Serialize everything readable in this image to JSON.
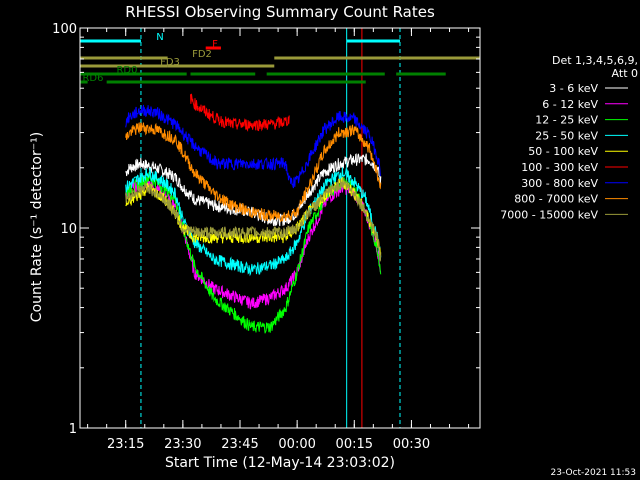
{
  "chart_data": {
    "type": "line",
    "title": "RHESSI Observing Summary Count Rates",
    "xlabel": "Start Time (12-May-14 23:03:02)",
    "ylabel": "Count Rate (s⁻¹ detector⁻¹)",
    "yscale": "log",
    "ylim": [
      1,
      100
    ],
    "xlim_minutes": [
      0,
      105
    ],
    "x_ticks": [
      {
        "label": "23:15",
        "t": 12
      },
      {
        "label": "23:30",
        "t": 27
      },
      {
        "label": "23:45",
        "t": 42
      },
      {
        "label": "00:00",
        "t": 57
      },
      {
        "label": "00:15",
        "t": 72
      },
      {
        "label": "00:30",
        "t": 87
      }
    ],
    "y_ticks": [
      {
        "label": "1",
        "value": 1
      },
      {
        "label": "10",
        "value": 10
      },
      {
        "label": "100",
        "value": 100
      }
    ],
    "grid": false,
    "legend": {
      "position": "right",
      "header": [
        "Det 1,3,4,5,6,9,",
        "Att 0"
      ]
    },
    "series": [
      {
        "name": "3 - 6 keV",
        "color": "#ffffff",
        "t": [
          12,
          13,
          16,
          20,
          25,
          27,
          30,
          35,
          45,
          50,
          54,
          57,
          60,
          64,
          68,
          72,
          76,
          78,
          79
        ],
        "values": [
          19,
          20,
          21,
          20,
          18,
          16,
          14,
          13,
          12,
          11,
          11,
          12,
          15,
          19,
          21,
          22,
          22,
          20,
          17
        ]
      },
      {
        "name": "6 - 12 keV",
        "color": "#ff00ff",
        "t": [
          12,
          14,
          18,
          22,
          25,
          27,
          30,
          35,
          45,
          50,
          54,
          57,
          60,
          65,
          69,
          72,
          75,
          78,
          79
        ],
        "values": [
          15,
          16,
          17,
          15,
          13,
          10,
          6,
          5,
          4.2,
          4.5,
          5,
          6,
          9,
          14,
          16,
          15,
          12,
          8,
          6
        ]
      },
      {
        "name": "12 - 25 keV",
        "color": "#00ff00",
        "t": [
          12,
          14,
          18,
          22,
          25,
          27,
          30,
          35,
          45,
          50,
          54,
          57,
          60,
          65,
          69,
          72,
          75,
          78,
          79
        ],
        "values": [
          15,
          16,
          18,
          16,
          14,
          10,
          6.5,
          4.5,
          3.2,
          3.2,
          4,
          6,
          10,
          15,
          17,
          16,
          12,
          8,
          6
        ]
      },
      {
        "name": "25 - 50 keV",
        "color": "#00ffff",
        "t": [
          12,
          14,
          18,
          22,
          25,
          27,
          30,
          35,
          45,
          50,
          54,
          57,
          60,
          65,
          69,
          72,
          75,
          78,
          79
        ],
        "values": [
          16,
          17,
          19,
          17,
          15,
          11,
          8.5,
          7,
          6.2,
          6.5,
          7,
          8.5,
          12,
          17,
          19,
          17,
          14,
          9,
          7
        ]
      },
      {
        "name": "50 - 100 keV",
        "color": "#ffff00",
        "t": [
          12,
          14,
          18,
          22,
          25,
          27,
          30,
          35,
          45,
          50,
          54,
          57,
          60,
          65,
          69,
          72,
          75,
          78,
          79
        ],
        "values": [
          13,
          14,
          16,
          14,
          12,
          10,
          9,
          9,
          9,
          9,
          9,
          10,
          12,
          15,
          17,
          15,
          12,
          9,
          7
        ]
      },
      {
        "name": "100 - 300 keV",
        "color": "#ff0000",
        "t": [
          29,
          30,
          33,
          36,
          40,
          45,
          50,
          54,
          55
        ],
        "values": [
          45,
          42,
          38,
          35,
          33,
          33,
          33,
          34,
          35
        ]
      },
      {
        "name": "300 - 800 keV",
        "color": "#0000ff",
        "t": [
          12,
          13,
          16,
          20,
          25,
          27,
          29,
          32,
          36,
          40,
          45,
          50,
          54,
          55,
          57,
          60,
          64,
          68,
          72,
          76,
          78,
          79
        ],
        "values": [
          34,
          36,
          39,
          38,
          33,
          30,
          27,
          24,
          21,
          21,
          21,
          21,
          21,
          17,
          17,
          22,
          31,
          36,
          35,
          29,
          23,
          19
        ]
      },
      {
        "name": "800 - 7000 keV",
        "color": "#ff8c00",
        "t": [
          12,
          13,
          16,
          20,
          25,
          27,
          30,
          35,
          40,
          45,
          50,
          54,
          57,
          60,
          64,
          68,
          72,
          76,
          78,
          79
        ],
        "values": [
          28,
          30,
          32,
          31,
          28,
          24,
          19,
          15,
          13,
          12,
          11.5,
          11.5,
          12,
          16,
          24,
          30,
          31,
          25,
          19,
          16
        ]
      },
      {
        "name": "7000 - 15000 keV",
        "color": "#9a9a3a",
        "t": [
          12,
          14,
          18,
          22,
          25,
          27,
          30,
          35,
          45,
          50,
          54,
          57,
          60,
          65,
          69,
          72,
          75,
          78,
          79
        ],
        "values": [
          14,
          15,
          16,
          14,
          12,
          10,
          9.5,
          9.5,
          9.5,
          9.5,
          9.5,
          10,
          12,
          15,
          17,
          15,
          12,
          9,
          7
        ]
      }
    ],
    "flag_bars": [
      {
        "label": "N",
        "color": "#00ffff",
        "segments": [
          [
            0,
            16
          ],
          [
            70,
            84
          ]
        ]
      },
      {
        "label": "F",
        "color": "#ff0000",
        "segments": [
          [
            33,
            37
          ]
        ]
      },
      {
        "label": "FD2",
        "color": "#9a9a3a",
        "segments": [
          [
            0,
            23
          ],
          [
            51,
            105
          ]
        ]
      },
      {
        "label": "FD3",
        "color": "#9a9a3a",
        "segments": [
          [
            0,
            23
          ],
          [
            23,
            51
          ]
        ]
      },
      {
        "label": "RD0",
        "color": "#008000",
        "segments": [
          [
            0,
            28
          ],
          [
            29,
            46
          ],
          [
            49,
            80
          ],
          [
            83,
            96
          ]
        ]
      },
      {
        "label": "RD6",
        "color": "#008000",
        "segments": [
          [
            0,
            2
          ],
          [
            7,
            75
          ]
        ]
      }
    ],
    "vlines": [
      {
        "t": 0,
        "color": "#00ffff",
        "style": "solid"
      },
      {
        "t": 16,
        "color": "#00ffff",
        "style": "dashed"
      },
      {
        "t": 70,
        "color": "#00ffff",
        "style": "solid"
      },
      {
        "t": 74,
        "color": "#ff0000",
        "style": "solid"
      },
      {
        "t": 84,
        "color": "#00ffff",
        "style": "dashed"
      }
    ]
  },
  "footer": {
    "timestamp": "23-Oct-2021 11:53"
  }
}
